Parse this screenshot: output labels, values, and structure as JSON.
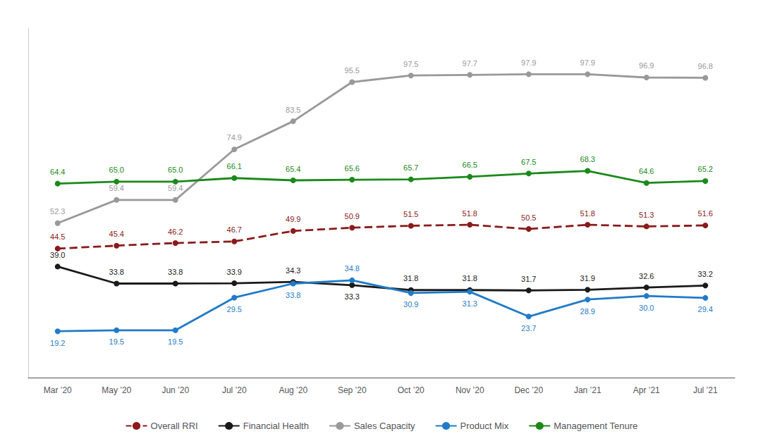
{
  "chart_data": {
    "type": "line",
    "categories": [
      "Mar ’20",
      "May ’20",
      "Jun ’20",
      "Jul ’20",
      "Aug ’20",
      "Sep ’20",
      "Oct ’20",
      "Nov ’20",
      "Dec ’20",
      "Jan ’21",
      "Apr ’21",
      "Jul ’21"
    ],
    "series": [
      {
        "name": "Overall RRI",
        "color": "#8B1A1A",
        "line_style": "dashed",
        "marker": "circle",
        "values": [
          44.5,
          45.4,
          46.2,
          46.7,
          49.9,
          50.9,
          51.5,
          51.8,
          50.5,
          51.8,
          51.3,
          51.6
        ],
        "value_labels": [
          "44.5",
          "45.4",
          "46.2",
          "46.7",
          "49.9",
          "50.9",
          "51.5",
          "51.8",
          "50.5",
          "51.8",
          "51.3",
          "51.6"
        ]
      },
      {
        "name": "Financial Health",
        "color": "#1a1a1a",
        "line_style": "solid",
        "marker": "circle",
        "values": [
          39.0,
          33.8,
          33.8,
          33.9,
          34.3,
          33.3,
          31.8,
          31.8,
          31.7,
          31.9,
          32.6,
          33.2
        ],
        "value_labels": [
          "39.0",
          "33.8",
          "33.8",
          "33.9",
          "34.3",
          "33.3",
          "31.8",
          "31.8",
          "31.7",
          "31.9",
          "32.6",
          "33.2"
        ]
      },
      {
        "name": "Sales Capacity",
        "color": "#999999",
        "line_style": "solid",
        "marker": "circle",
        "values": [
          52.3,
          59.4,
          59.4,
          74.9,
          83.5,
          95.5,
          97.5,
          97.7,
          97.9,
          97.9,
          96.9,
          96.8
        ],
        "value_labels": [
          "52.3",
          "59.4",
          "59.4",
          "74.9",
          "83.5",
          "95.5",
          "97.5",
          "97.7",
          "97.9",
          "97.9",
          "96.9",
          "96.8"
        ]
      },
      {
        "name": "Product Mix",
        "color": "#1f7bc8",
        "line_style": "solid",
        "marker": "circle",
        "values": [
          19.2,
          19.5,
          19.5,
          29.5,
          33.8,
          34.8,
          30.9,
          31.3,
          23.7,
          28.9,
          30.0,
          29.4
        ],
        "value_labels": [
          "19.2",
          "19.5",
          "19.5",
          "29.5",
          "33.8",
          "34.8",
          "30.9",
          "31.3",
          "23.7",
          "28.9",
          "30.0",
          "29.4"
        ]
      },
      {
        "name": "Management Tenure",
        "color": "#1a8a1a",
        "line_style": "solid",
        "marker": "circle",
        "values": [
          64.4,
          65.0,
          65.0,
          66.1,
          65.4,
          65.6,
          65.7,
          66.5,
          67.5,
          68.3,
          64.6,
          65.2
        ],
        "value_labels": [
          "64.4",
          "65.0",
          "65.0",
          "66.1",
          "65.4",
          "65.6",
          "65.7",
          "66.5",
          "67.5",
          "68.3",
          "64.6",
          "65.2"
        ]
      }
    ],
    "ylim": [
      5,
      112
    ],
    "tick_labels": "x",
    "grid": false,
    "legend": "bottom",
    "data_labels": true
  }
}
